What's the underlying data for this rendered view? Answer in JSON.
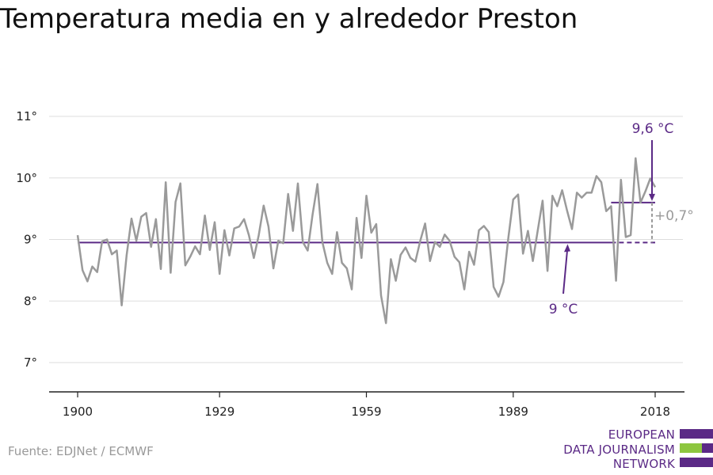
{
  "title": "Temperatura media en y alrededor Preston",
  "source": "Fuente: EDJNet / ECMWF",
  "logo": {
    "lines": [
      "EUROPEAN",
      "DATA JOURNALISM",
      "NETWORK"
    ],
    "colors": {
      "purple": "#5b2a86",
      "green": "#8dc63f"
    }
  },
  "colors": {
    "series": "#9a9a9a",
    "baseline": "#5b2a86",
    "recent": "#5b2a86",
    "grid": "#dddddd"
  },
  "chart_data": {
    "type": "line",
    "title": "Temperatura media en y alrededor Preston",
    "xlabel": "",
    "ylabel": "",
    "xlim": [
      1900,
      2018
    ],
    "ylim": [
      6.5,
      11.2
    ],
    "xticks": [
      1900,
      1929,
      1959,
      1989,
      2018
    ],
    "xtick_labels": [
      "1900",
      "1929",
      "1959",
      "1989",
      "2018"
    ],
    "yticks": [
      7,
      8,
      9,
      10,
      11
    ],
    "ytick_labels": [
      "7°",
      "8°",
      "9°",
      "10°",
      "11°"
    ],
    "grid": true,
    "series": [
      {
        "x": [
          1900,
          1901,
          1902,
          1903,
          1904,
          1905,
          1906,
          1907,
          1908,
          1909,
          1910,
          1911,
          1912,
          1913,
          1914,
          1915,
          1916,
          1917,
          1918,
          1919,
          1920,
          1921,
          1922,
          1923,
          1924,
          1925,
          1926,
          1927,
          1928,
          1929,
          1930,
          1931,
          1932,
          1933,
          1934,
          1935,
          1936,
          1937,
          1938,
          1939,
          1940,
          1941,
          1942,
          1943,
          1944,
          1945,
          1946,
          1947,
          1948,
          1949,
          1950,
          1951,
          1952,
          1953,
          1954,
          1955,
          1956,
          1957,
          1958,
          1959,
          1960,
          1961,
          1962,
          1963,
          1964,
          1965,
          1966,
          1967,
          1968,
          1969,
          1970,
          1971,
          1972,
          1973,
          1974,
          1975,
          1976,
          1977,
          1978,
          1979,
          1980,
          1981,
          1982,
          1983,
          1984,
          1985,
          1986,
          1987,
          1988,
          1989,
          1990,
          1991,
          1992,
          1993,
          1994,
          1995,
          1996,
          1997,
          1998,
          1999,
          2000,
          2001,
          2002,
          2003,
          2004,
          2005,
          2006,
          2007,
          2008,
          2009,
          2010,
          2011,
          2012,
          2013,
          2014,
          2015,
          2016,
          2017,
          2018
        ],
        "values": [
          9.07,
          8.5,
          8.32,
          8.56,
          8.47,
          8.97,
          9.0,
          8.76,
          8.82,
          7.93,
          8.74,
          9.34,
          8.98,
          9.37,
          9.43,
          8.88,
          9.33,
          8.52,
          9.93,
          8.46,
          9.61,
          9.91,
          8.58,
          8.72,
          8.89,
          8.76,
          9.39,
          8.83,
          9.28,
          8.44,
          9.15,
          8.74,
          9.18,
          9.21,
          9.33,
          9.07,
          8.7,
          9.07,
          9.55,
          9.21,
          8.53,
          8.98,
          8.94,
          9.74,
          9.14,
          9.91,
          8.96,
          8.82,
          9.4,
          9.9,
          8.96,
          8.62,
          8.44,
          9.12,
          8.62,
          8.53,
          8.19,
          9.35,
          8.7,
          9.71,
          9.11,
          9.25,
          8.09,
          7.64,
          8.68,
          8.33,
          8.75,
          8.87,
          8.7,
          8.64,
          8.98,
          9.26,
          8.65,
          8.96,
          8.88,
          9.08,
          8.98,
          8.72,
          8.63,
          8.19,
          8.8,
          8.59,
          9.15,
          9.22,
          9.12,
          8.23,
          8.07,
          8.31,
          9.03,
          9.65,
          9.73,
          8.77,
          9.14,
          8.65,
          9.14,
          9.63,
          8.49,
          9.71,
          9.54,
          9.8,
          9.47,
          9.17,
          9.76,
          9.68,
          9.76,
          9.76,
          10.03,
          9.93,
          9.46,
          9.54,
          8.33,
          9.97,
          9.04,
          9.07,
          10.32,
          9.6,
          9.78,
          9.99,
          9.85
        ]
      }
    ],
    "reference_lines": [
      {
        "label": "9 °C",
        "value": 8.95,
        "x_from": 1900,
        "x_to": 2018
      },
      {
        "label": "9,6 °C",
        "value": 9.6,
        "x_from": 2009,
        "x_to": 2018
      }
    ],
    "annotations": {
      "baseline": "9 °C",
      "recent": "9,6 °C",
      "difference": "+0,7°"
    }
  }
}
